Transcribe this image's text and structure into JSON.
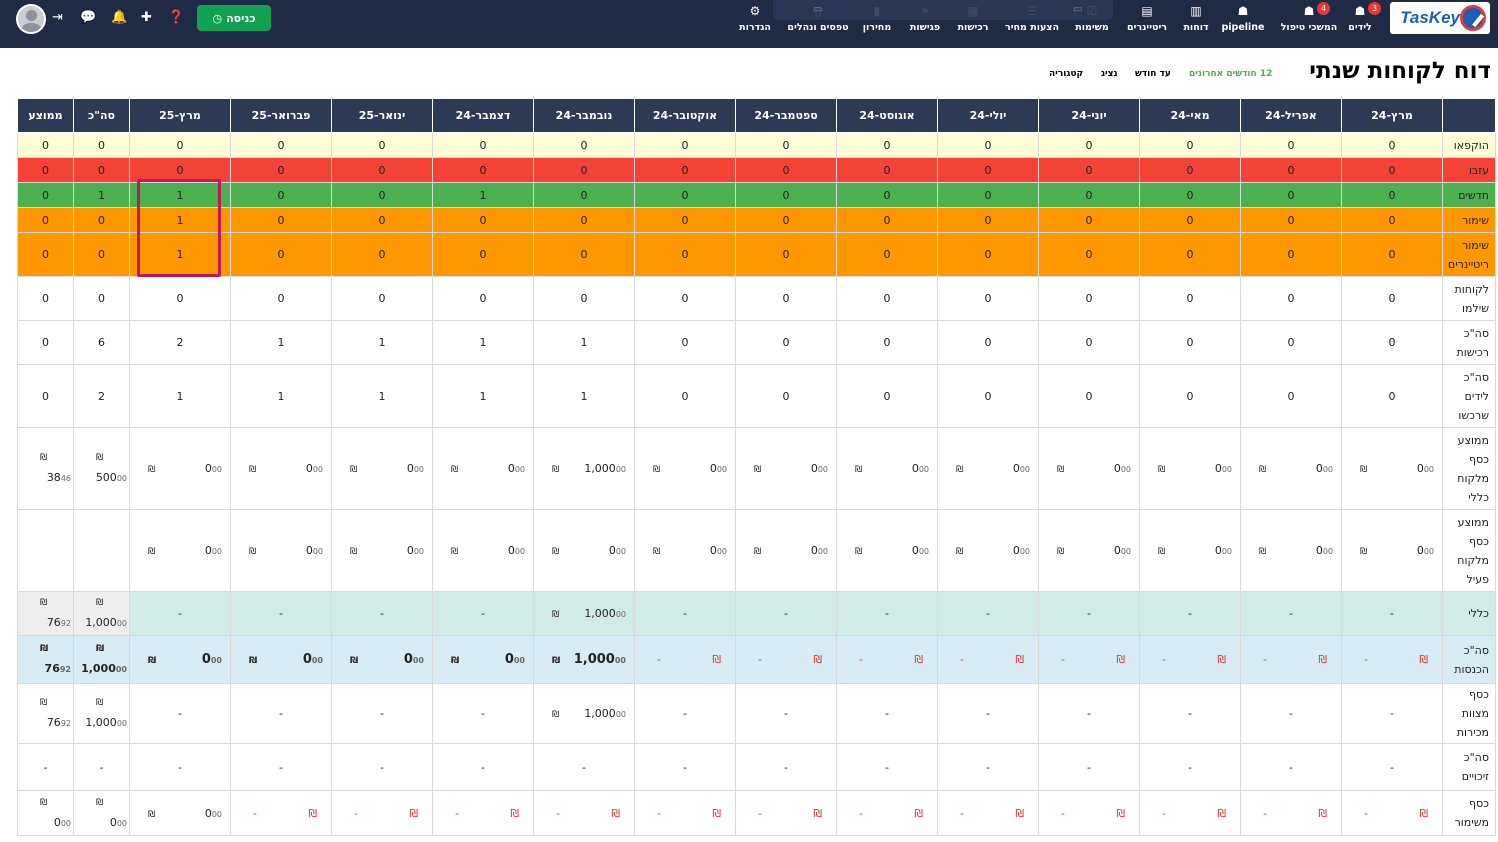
{
  "app": {
    "logo_text": "TasKey"
  },
  "nav": [
    {
      "id": "leads",
      "label": "לידים",
      "icon": "person-icon",
      "badge": "3"
    },
    {
      "id": "care",
      "label": "המשכי טיפול",
      "icon": "person-icon",
      "badge": "4"
    },
    {
      "id": "pipeline",
      "label": "pipeline",
      "icon": "person-icon"
    },
    {
      "id": "reports",
      "label": "דוחות",
      "icon": "chart-icon"
    },
    {
      "id": "retainers",
      "label": "ריטיינרים",
      "icon": "document-icon"
    },
    {
      "id": "tasks",
      "label": "משימות",
      "icon": "checkbox-icon"
    },
    {
      "id": "quotes",
      "label": "הצעות מחיר",
      "icon": "quote-icon"
    },
    {
      "id": "purchases",
      "label": "רכישות",
      "icon": "graph-icon"
    },
    {
      "id": "meetings",
      "label": "פגישות",
      "icon": "handshake-icon"
    },
    {
      "id": "catalog",
      "label": "מחירון",
      "icon": "barcode-icon"
    },
    {
      "id": "forms",
      "label": "טפסים ונהלים",
      "icon": "forms-icon"
    },
    {
      "id": "settings",
      "label": "הגדרות",
      "icon": "gear-icon"
    }
  ],
  "toolbar": {
    "enter_label": "כניסה"
  },
  "page": {
    "title": "דוח לקוחות שנתי"
  },
  "filters": {
    "last12": "12 חודשים אחרונים",
    "until_month": "עד חודש",
    "agent": "נציג",
    "category": "קטגוריה"
  },
  "colors": {
    "accent_green": "#12a150",
    "header_dark": "#2d3a55",
    "red": "#f44336",
    "green": "#4caf50",
    "orange": "#ff9800",
    "yellow": "#fffcd8",
    "highlight": "#c2185b"
  },
  "table": {
    "columns": [
      "מרץ-24",
      "אפריל-24",
      "מאי-24",
      "יוני-24",
      "יולי-24",
      "אוגוסט-24",
      "ספטמבר-24",
      "אוקטובר-24",
      "נובמבר-24",
      "דצמבר-24",
      "ינואר-25",
      "פברואר-25",
      "מרץ-25",
      "סה\"כ",
      "ממוצע"
    ],
    "rows": [
      {
        "label": "הוקפאו",
        "values": [
          "0",
          "0",
          "0",
          "0",
          "0",
          "0",
          "0",
          "0",
          "0",
          "0",
          "0",
          "0",
          "0",
          "0",
          "0"
        ]
      },
      {
        "label": "עזבו",
        "values": [
          "0",
          "0",
          "0",
          "0",
          "0",
          "0",
          "0",
          "0",
          "0",
          "0",
          "0",
          "0",
          "0",
          "0",
          "0"
        ]
      },
      {
        "label": "חדשים",
        "values": [
          "0",
          "0",
          "0",
          "0",
          "0",
          "0",
          "0",
          "0",
          "0",
          "1",
          "0",
          "0",
          "1",
          "1",
          "0"
        ]
      },
      {
        "label": "שימור",
        "values": [
          "0",
          "0",
          "0",
          "0",
          "0",
          "0",
          "0",
          "0",
          "0",
          "0",
          "0",
          "0",
          "1",
          "0",
          "0"
        ]
      },
      {
        "label": "שימור ריטיינרים",
        "values": [
          "0",
          "0",
          "0",
          "0",
          "0",
          "0",
          "0",
          "0",
          "0",
          "0",
          "0",
          "0",
          "1",
          "0",
          "0"
        ]
      },
      {
        "label": "לקוחות שילמו",
        "values": [
          "0",
          "0",
          "0",
          "0",
          "0",
          "0",
          "0",
          "0",
          "0",
          "0",
          "0",
          "0",
          "0",
          "0",
          "0"
        ]
      },
      {
        "label": "סה\"כ רכישות",
        "values": [
          "0",
          "0",
          "0",
          "0",
          "0",
          "0",
          "0",
          "0",
          "1",
          "1",
          "1",
          "1",
          "2",
          "6",
          "0"
        ]
      },
      {
        "label": "סה\"כ לידים שרכשו",
        "values": [
          "0",
          "0",
          "0",
          "0",
          "0",
          "0",
          "0",
          "0",
          "1",
          "1",
          "1",
          "1",
          "1",
          "2",
          "0"
        ]
      },
      {
        "label": "ממוצע כסף מלקוח כללי",
        "values": [
          "0",
          "0",
          "0",
          "0",
          "0",
          "0",
          "0",
          "0",
          "1,000",
          "0",
          "0",
          "0",
          "0",
          "500",
          "38"
        ],
        "decimals": [
          "00",
          "00",
          "00",
          "00",
          "00",
          "00",
          "00",
          "00",
          "00",
          "00",
          "00",
          "00",
          "00",
          "00",
          "46"
        ]
      },
      {
        "label": "ממוצע כסף מלקוח פעיל",
        "values": [
          "0",
          "0",
          "0",
          "0",
          "0",
          "0",
          "0",
          "0",
          "0",
          "0",
          "0",
          "0",
          "0",
          "",
          ""
        ],
        "decimals": [
          "00",
          "00",
          "00",
          "00",
          "00",
          "00",
          "00",
          "00",
          "00",
          "00",
          "00",
          "00",
          "00",
          "",
          ""
        ]
      },
      {
        "label": "כללי",
        "values": [
          "-",
          "-",
          "-",
          "-",
          "-",
          "-",
          "-",
          "-",
          "1,000",
          "-",
          "-",
          "-",
          "-",
          "1,000",
          "76"
        ],
        "decimals": [
          "",
          "",
          "",
          "",
          "",
          "",
          "",
          "",
          "00",
          "",
          "",
          "",
          "",
          "00",
          "92"
        ]
      },
      {
        "label": "סה\"כ הכנסות",
        "values": [
          "-",
          "-",
          "-",
          "-",
          "-",
          "-",
          "-",
          "-",
          "1,000",
          "0",
          "0",
          "0",
          "0",
          "1,000",
          "76"
        ],
        "decimals": [
          "",
          "",
          "",
          "",
          "",
          "",
          "",
          "",
          "00",
          "00",
          "00",
          "00",
          "00",
          "00",
          "92"
        ]
      },
      {
        "label": "כסף מצוות מכירות",
        "values": [
          "-",
          "-",
          "-",
          "-",
          "-",
          "-",
          "-",
          "-",
          "1,000",
          "-",
          "-",
          "-",
          "-",
          "1,000",
          "76"
        ],
        "decimals": [
          "",
          "",
          "",
          "",
          "",
          "",
          "",
          "",
          "00",
          "",
          "",
          "",
          "",
          "00",
          "92"
        ]
      },
      {
        "label": "סה\"כ זיכויים",
        "values": [
          "-",
          "-",
          "-",
          "-",
          "-",
          "-",
          "-",
          "-",
          "-",
          "-",
          "-",
          "-",
          "-",
          "-",
          "-"
        ]
      },
      {
        "label": "כסף משימור",
        "values": [
          "-",
          "-",
          "-",
          "-",
          "-",
          "-",
          "-",
          "-",
          "-",
          "-",
          "-",
          "-",
          "0",
          "0",
          "0"
        ],
        "decimals": [
          "",
          "",
          "",
          "",
          "",
          "",
          "",
          "",
          "",
          "",
          "",
          "",
          "00",
          "00",
          "00"
        ]
      }
    ],
    "currency": "₪"
  }
}
